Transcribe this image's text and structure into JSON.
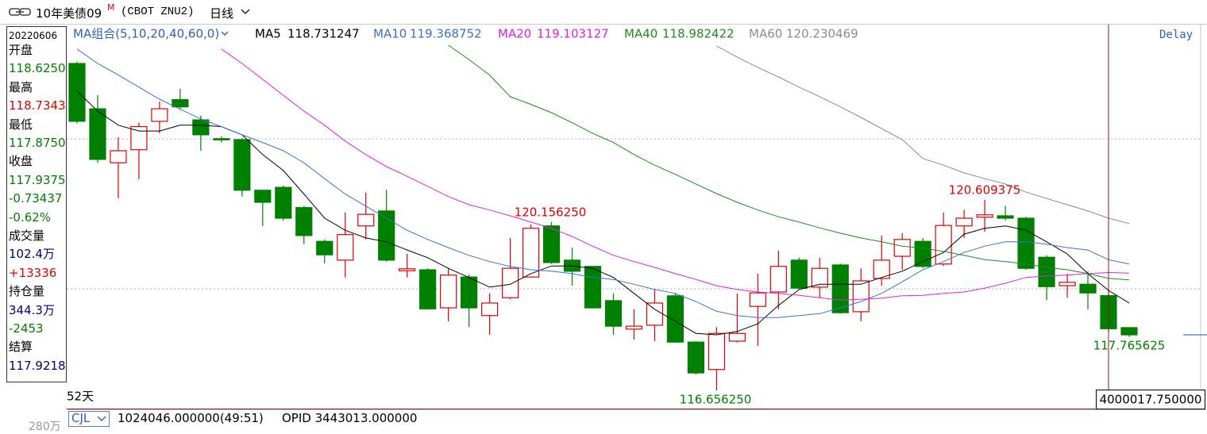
{
  "header": {
    "title": "10年美债09",
    "badge": "M",
    "symbol": "(CBOT ZNU2)",
    "period": "日线",
    "delay": "Delay"
  },
  "info_panel": [
    {
      "text": "20220606",
      "color": "#000000"
    },
    {
      "text": "开盘",
      "color": "#000000"
    },
    {
      "text": "118.6250",
      "color": "#008000"
    },
    {
      "text": "最高",
      "color": "#000000"
    },
    {
      "text": "118.7343",
      "color": "#e00000"
    },
    {
      "text": "最低",
      "color": "#000000"
    },
    {
      "text": "117.8750",
      "color": "#008000"
    },
    {
      "text": "收盘",
      "color": "#000000"
    },
    {
      "text": "117.9375",
      "color": "#008000"
    },
    {
      "text": "-0.73437",
      "color": "#008000"
    },
    {
      "text": "-0.62%",
      "color": "#008000"
    },
    {
      "text": "成交量",
      "color": "#000000"
    },
    {
      "text": "102.4万",
      "color": "#000080"
    },
    {
      "text": "+13336",
      "color": "#e00000"
    },
    {
      "text": "持仓量",
      "color": "#000000"
    },
    {
      "text": "344.3万",
      "color": "#000080"
    },
    {
      "text": "-2453",
      "color": "#008000"
    },
    {
      "text": "结算",
      "color": "#000000"
    },
    {
      "text": "117.9218",
      "color": "#000080"
    }
  ],
  "chart_data": {
    "type": "candlestick",
    "indicator": "MA组合(5,10,20,40,60,0)",
    "period_count": "52天",
    "up_color": "#e00000",
    "down_color": "#008000",
    "ylim": [
      116.28,
      124.23
    ],
    "open": [
      123.44,
      122.5,
      121.38,
      121.65,
      122.24,
      122.69,
      122.27,
      121.88,
      121.86,
      120.81,
      120.87,
      120.45,
      119.75,
      119.36,
      120.07,
      120.38,
      119.14,
      119.16,
      118.37,
      119.01,
      118.21,
      118.58,
      119.01,
      120.07,
      119.36,
      119.23,
      118.52,
      117.93,
      118.01,
      118.62,
      117.66,
      117.09,
      117.68,
      118.4,
      118.7,
      119.36,
      118.8,
      119.26,
      118.29,
      118.98,
      119.44,
      119.75,
      119.28,
      120.07,
      120.25,
      120.28,
      120.23,
      119.42,
      118.83,
      118.86,
      118.625,
      117.96
    ],
    "high": [
      123.48,
      122.78,
      121.91,
      122.21,
      122.65,
      122.92,
      122.36,
      121.93,
      121.89,
      120.81,
      120.91,
      120.48,
      119.79,
      120.35,
      120.76,
      120.82,
      119.49,
      119.19,
      119.19,
      119.06,
      118.67,
      119.82,
      120.1,
      120.15625,
      119.62,
      119.24,
      118.67,
      118.34,
      118.75,
      118.67,
      117.68,
      117.97,
      118.67,
      119.08,
      119.56,
      119.41,
      119.41,
      119.29,
      119.19,
      119.87,
      119.92,
      119.82,
      120.35,
      120.4,
      120.609375,
      120.49,
      120.26,
      119.46,
      119.08,
      119.13,
      118.7343,
      117.97
    ],
    "low": [
      122.2,
      121.38,
      120.64,
      121.04,
      121.99,
      122.5,
      121.63,
      121.8,
      120.68,
      120.07,
      120.18,
      119.69,
      119.29,
      119.0,
      119.79,
      119.33,
      119.0,
      118.34,
      118.09,
      117.97,
      117.81,
      118.55,
      119.0,
      119.28,
      118.83,
      118.37,
      117.81,
      117.71,
      117.68,
      117.65,
      116.99,
      116.65625,
      117.65,
      117.58,
      118.34,
      118.75,
      118.58,
      118.25,
      118.09,
      118.83,
      119.16,
      119.19,
      119.24,
      119.82,
      119.95,
      120.18,
      119.16,
      118.53,
      118.58,
      118.34,
      117.875,
      117.765625
    ],
    "close": [
      122.24,
      121.45,
      121.63,
      122.13,
      122.5,
      122.54,
      121.96,
      121.86,
      120.81,
      120.56,
      120.23,
      119.87,
      119.47,
      119.89,
      120.31,
      119.36,
      119.18,
      118.35,
      119.05,
      118.37,
      118.47,
      119.19,
      120.02,
      119.31,
      119.13,
      118.37,
      117.99,
      117.99,
      118.47,
      117.66,
      117.02,
      117.84,
      117.84,
      118.68,
      119.23,
      118.78,
      119.19,
      118.27,
      118.93,
      119.36,
      119.79,
      119.23,
      120.08,
      120.23,
      120.3,
      120.23,
      119.19,
      118.81,
      118.9,
      118.68,
      117.9375,
      117.81
    ],
    "series": [
      {
        "name": "MA5",
        "color": "#000000",
        "values": [
          122.87,
          122.45,
          122.16,
          122.04,
          122.04,
          122.16,
          122.16,
          122.13,
          121.96,
          121.55,
          121.22,
          120.73,
          120.23,
          119.98,
          119.82,
          119.74,
          119.57,
          119.41,
          119.19,
          119.0,
          118.8,
          118.86,
          119.08,
          119.24,
          119.24,
          119.19,
          119.0,
          118.67,
          118.34,
          118.09,
          117.84,
          117.81,
          117.88,
          118.04,
          118.42,
          118.75,
          118.86,
          118.86,
          118.86,
          119.0,
          119.13,
          119.33,
          119.52,
          119.9,
          120.02,
          120.07,
          119.98,
          119.74,
          119.49,
          119.08,
          118.731247,
          118.47
        ]
      },
      {
        "name": "MA10",
        "color": "#3a72d0",
        "values": [
          123.74,
          123.44,
          123.2,
          122.95,
          122.7,
          122.49,
          122.29,
          122.13,
          121.96,
          121.8,
          121.63,
          121.38,
          121.05,
          120.73,
          120.48,
          120.23,
          119.98,
          119.79,
          119.62,
          119.46,
          119.33,
          119.23,
          119.16,
          119.13,
          119.08,
          119.0,
          118.96,
          118.86,
          118.75,
          118.67,
          118.5,
          118.3,
          118.21,
          118.17,
          118.17,
          118.21,
          118.25,
          118.37,
          118.5,
          118.67,
          118.91,
          119.16,
          119.33,
          119.52,
          119.65,
          119.74,
          119.74,
          119.69,
          119.62,
          119.57,
          119.368752,
          119.28
        ]
      },
      {
        "name": "MA20",
        "color": "#e020e0",
        "values": [
          null,
          null,
          null,
          null,
          null,
          null,
          null,
          123.74,
          123.44,
          123.11,
          122.78,
          122.45,
          122.16,
          121.83,
          121.55,
          121.3,
          121.1,
          120.89,
          120.68,
          120.51,
          120.4,
          120.28,
          120.15,
          120.02,
          119.85,
          119.65,
          119.46,
          119.33,
          119.21,
          119.08,
          118.96,
          118.83,
          118.75,
          118.7,
          118.67,
          118.63,
          118.58,
          118.53,
          118.55,
          118.57,
          118.62,
          118.63,
          118.67,
          118.7,
          118.78,
          118.88,
          119.0,
          119.03,
          119.05,
          119.08,
          119.103127,
          119.09
        ]
      },
      {
        "name": "MA40",
        "color": "#1e8a1e",
        "values": [
          null,
          null,
          null,
          null,
          null,
          null,
          null,
          null,
          null,
          null,
          null,
          null,
          null,
          null,
          null,
          null,
          null,
          null,
          123.82,
          123.52,
          123.2,
          122.75,
          122.59,
          122.42,
          122.21,
          121.99,
          121.8,
          121.55,
          121.33,
          121.14,
          120.94,
          120.74,
          120.56,
          120.4,
          120.26,
          120.15,
          120.03,
          119.92,
          119.82,
          119.74,
          119.65,
          119.61,
          119.54,
          119.46,
          119.37,
          119.33,
          119.28,
          119.21,
          119.16,
          119.08,
          118.982422,
          118.95
        ]
      },
      {
        "name": "MA60",
        "color": "#8c8c8c",
        "values": [
          null,
          null,
          null,
          null,
          null,
          null,
          null,
          null,
          null,
          null,
          null,
          null,
          null,
          null,
          null,
          null,
          null,
          null,
          null,
          null,
          null,
          null,
          null,
          null,
          null,
          null,
          null,
          null,
          null,
          null,
          null,
          123.8,
          123.57,
          123.36,
          123.16,
          122.95,
          122.75,
          122.54,
          122.32,
          122.09,
          121.86,
          121.47,
          121.33,
          121.17,
          121.05,
          120.94,
          120.77,
          120.64,
          120.51,
          120.38,
          120.230469,
          120.12
        ]
      }
    ],
    "annotations": [
      "120.156250",
      "120.609375",
      "116.656250",
      "117.765625"
    ]
  },
  "footer": {
    "indicator": "CJL",
    "volume": "1024046.000000(49:51)",
    "opid": "OPID 3443013.000000",
    "cut_label": "280万",
    "price_box": "4000017.750000"
  }
}
